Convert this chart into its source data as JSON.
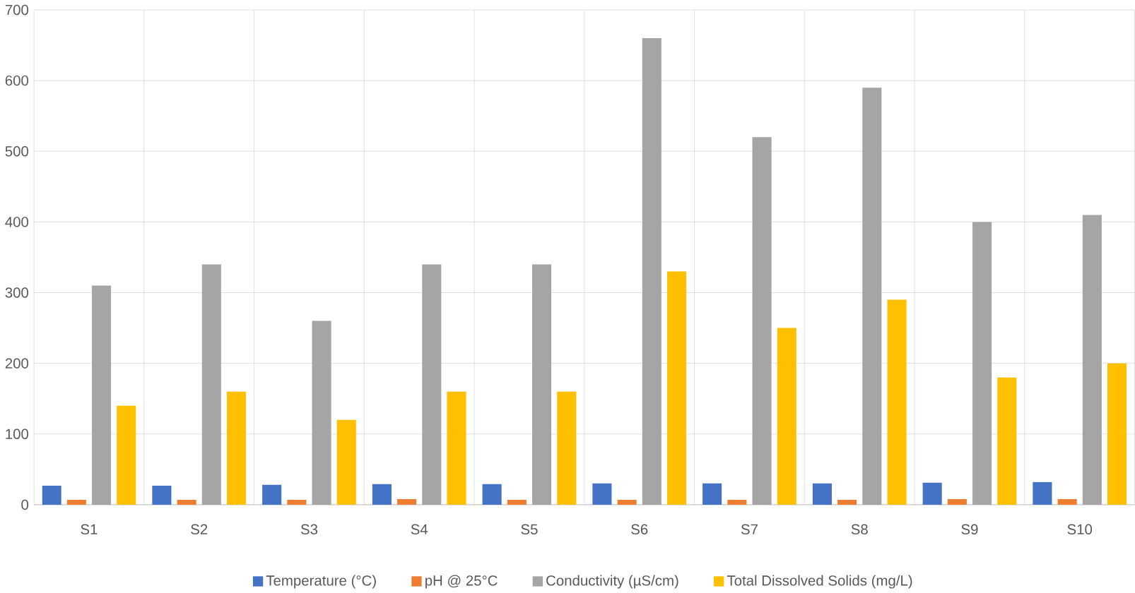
{
  "chart_data": {
    "type": "bar",
    "categories": [
      "S1",
      "S2",
      "S3",
      "S4",
      "S5",
      "S6",
      "S7",
      "S8",
      "S9",
      "S10"
    ],
    "series": [
      {
        "name": "Temperature (°C)",
        "color": "#4472c4",
        "values": [
          27,
          27,
          28,
          29,
          29,
          30,
          30,
          30,
          31,
          32
        ]
      },
      {
        "name": "pH @ 25°C",
        "color": "#ed7d31",
        "values": [
          7,
          7,
          7,
          8,
          7,
          7,
          7,
          7,
          8,
          8
        ]
      },
      {
        "name": "Conductivity (µS/cm)",
        "color": "#a5a5a5",
        "values": [
          310,
          340,
          260,
          340,
          340,
          660,
          520,
          590,
          400,
          410
        ]
      },
      {
        "name": "Total Dissolved Solids (mg/L)",
        "color": "#ffc000",
        "values": [
          140,
          160,
          120,
          160,
          160,
          330,
          250,
          290,
          180,
          200
        ]
      }
    ],
    "ylim": [
      0,
      700
    ],
    "yticks": [
      0,
      100,
      200,
      300,
      400,
      500,
      600,
      700
    ],
    "grid": true,
    "legend": "bottom"
  }
}
